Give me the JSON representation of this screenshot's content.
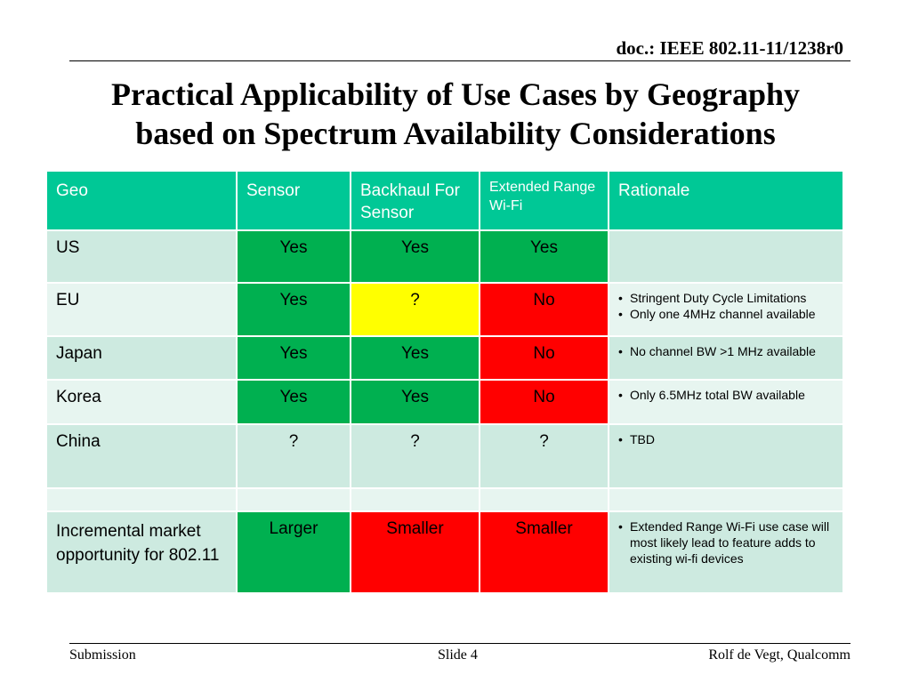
{
  "header": {
    "doc_id": "doc.: IEEE 802.11-11/1238r0",
    "title_line1": "Practical Applicability of Use Cases by Geography",
    "title_line2": "based on Spectrum Availability Considerations"
  },
  "table": {
    "columns": [
      "Geo",
      "Sensor",
      "Backhaul For Sensor",
      "Extended Range Wi-Fi",
      "Rationale"
    ],
    "rows": [
      {
        "geo": "US",
        "sensor": "Yes",
        "backhaul": "Yes",
        "extended": "Yes",
        "rationale": []
      },
      {
        "geo": "EU",
        "sensor": "Yes",
        "backhaul": "?",
        "extended": "No",
        "rationale": [
          "Stringent Duty Cycle Limitations",
          "Only one 4MHz channel available"
        ]
      },
      {
        "geo": "Japan",
        "sensor": "Yes",
        "backhaul": "Yes",
        "extended": "No",
        "rationale": [
          "No channel BW  >1 MHz available"
        ]
      },
      {
        "geo": "Korea",
        "sensor": "Yes",
        "backhaul": "Yes",
        "extended": "No",
        "rationale": [
          "Only 6.5MHz total BW available"
        ]
      },
      {
        "geo": "China",
        "sensor": "?",
        "backhaul": "?",
        "extended": "?",
        "rationale": [
          "TBD"
        ]
      },
      {
        "geo": "",
        "sensor": "",
        "backhaul": "",
        "extended": "",
        "rationale": []
      },
      {
        "geo": "Incremental market opportunity for 802.11",
        "sensor": "Larger",
        "backhaul": "Smaller",
        "extended": "Smaller",
        "rationale": [
          "Extended Range Wi-Fi use case will most likely lead to feature adds to existing wi-fi devices"
        ]
      }
    ],
    "colors": {
      "header": "#00c896",
      "yes": "#00b050",
      "uncertain": "#ffff00",
      "no": "#ff0000",
      "row_band_dark": "#cdeae0",
      "row_band_light": "#e7f5f0"
    }
  },
  "footer": {
    "left": "Submission",
    "center": "Slide 4",
    "right": "Rolf de Vegt, Qualcomm"
  }
}
